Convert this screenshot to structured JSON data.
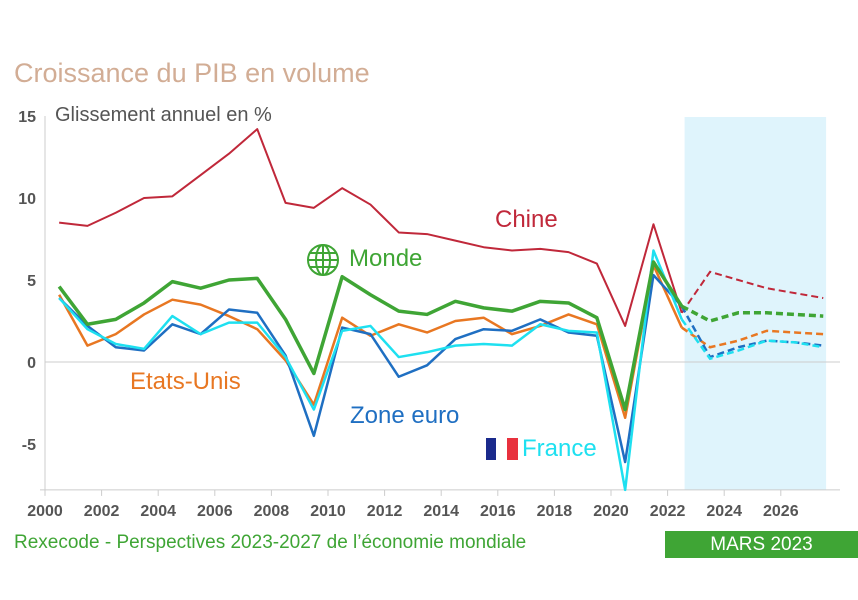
{
  "chart_data": {
    "type": "line",
    "title": "Croissance du PIB en volume",
    "ylabel": "Glissement annuel en %",
    "xlabel": "",
    "ylim": [
      -7.8,
      15
    ],
    "xlim": [
      2000,
      2028
    ],
    "yticks": [
      15,
      10,
      5,
      0,
      -5
    ],
    "xticks": [
      "2000",
      "2002",
      "2004",
      "2006",
      "2008",
      "2010",
      "2012",
      "2014",
      "2016",
      "2018",
      "2020",
      "2022",
      "2024",
      "2026"
    ],
    "forecast_shading": [
      2022.6,
      2027.6
    ],
    "x": [
      2000,
      2001,
      2002,
      2003,
      2004,
      2005,
      2006,
      2007,
      2008,
      2009,
      2010,
      2011,
      2012,
      2013,
      2014,
      2015,
      2016,
      2017,
      2018,
      2019,
      2020,
      2021,
      2022
    ],
    "forecast_x": [
      2022,
      2023,
      2024,
      2025,
      2026,
      2027
    ],
    "series": [
      {
        "name": "Chine",
        "color": "#c0283a",
        "width": 2,
        "values": [
          8.5,
          8.3,
          9.1,
          10.0,
          10.1,
          11.4,
          12.7,
          14.2,
          9.7,
          9.4,
          10.6,
          9.6,
          7.9,
          7.8,
          7.4,
          7.0,
          6.8,
          6.9,
          6.7,
          6.0,
          2.2,
          8.4,
          3.0
        ],
        "forecast": [
          3.0,
          5.5,
          5.0,
          4.5,
          4.2,
          3.9
        ]
      },
      {
        "name": "Etats-Unis",
        "color": "#e87722",
        "width": 2.5,
        "values": [
          4.1,
          1.0,
          1.7,
          2.9,
          3.8,
          3.5,
          2.8,
          2.0,
          0.1,
          -2.6,
          2.7,
          1.6,
          2.3,
          1.8,
          2.5,
          2.7,
          1.7,
          2.2,
          2.9,
          2.3,
          -3.4,
          5.9,
          2.1
        ],
        "forecast": [
          2.1,
          0.9,
          1.3,
          1.9,
          1.8,
          1.7
        ]
      },
      {
        "name": "Zone euro",
        "color": "#1f6fc2",
        "width": 2.5,
        "values": [
          3.9,
          2.2,
          0.9,
          0.7,
          2.3,
          1.7,
          3.2,
          3.0,
          0.4,
          -4.5,
          2.1,
          1.7,
          -0.9,
          -0.2,
          1.4,
          2.0,
          1.9,
          2.6,
          1.8,
          1.6,
          -6.1,
          5.3,
          3.4
        ],
        "forecast": [
          3.4,
          0.3,
          0.9,
          1.3,
          1.2,
          1.0
        ]
      },
      {
        "name": "France",
        "color": "#1ee0f0",
        "width": 2.5,
        "values": [
          3.9,
          2.0,
          1.1,
          0.8,
          2.8,
          1.7,
          2.4,
          2.4,
          0.3,
          -2.9,
          1.9,
          2.2,
          0.3,
          0.6,
          1.0,
          1.1,
          1.0,
          2.3,
          1.9,
          1.8,
          -7.8,
          6.8,
          2.6
        ],
        "forecast": [
          2.6,
          0.2,
          0.7,
          1.3,
          1.2,
          0.9
        ]
      },
      {
        "name": "Monde",
        "color": "#3fa535",
        "width": 3.5,
        "values": [
          4.6,
          2.3,
          2.6,
          3.6,
          4.9,
          4.5,
          5.0,
          5.1,
          2.6,
          -0.7,
          5.2,
          4.1,
          3.1,
          2.9,
          3.7,
          3.3,
          3.1,
          3.7,
          3.6,
          2.7,
          -2.9,
          6.1,
          3.4
        ],
        "forecast": [
          3.4,
          2.5,
          3.0,
          3.0,
          2.9,
          2.8
        ]
      }
    ]
  },
  "footer": {
    "source": "Rexecode - Perspectives 2023-2027 de l’économie mondiale",
    "edition": "MARS 2023"
  }
}
